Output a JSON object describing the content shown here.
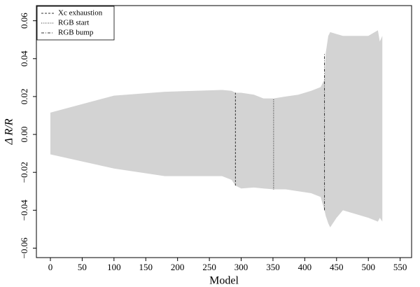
{
  "chart_data": {
    "type": "band",
    "xlabel": "Model",
    "ylabel": "Δ R/R",
    "xlim": [
      -22,
      568
    ],
    "ylim": [
      -0.065,
      0.068
    ],
    "xticks": [
      0,
      50,
      100,
      150,
      200,
      250,
      300,
      350,
      400,
      450,
      500,
      550
    ],
    "yticks": [
      {
        "value": -0.06,
        "label": "−0.06"
      },
      {
        "value": -0.04,
        "label": "−0.04"
      },
      {
        "value": -0.02,
        "label": "−0.02"
      },
      {
        "value": 0,
        "label": "0.00"
      },
      0.02,
      0.04,
      0.06
    ],
    "band": {
      "color": "#d3d3d3",
      "x": [
        0,
        100,
        180,
        270,
        285,
        291,
        300,
        320,
        335,
        351,
        370,
        390,
        410,
        425,
        431,
        433,
        437,
        440,
        450,
        460,
        480,
        500,
        515,
        518,
        522
      ],
      "upper": [
        0.0115,
        0.0205,
        0.0225,
        0.0235,
        0.023,
        0.022,
        0.022,
        0.021,
        0.019,
        0.019,
        0.02,
        0.021,
        0.023,
        0.025,
        0.029,
        0.043,
        0.052,
        0.054,
        0.053,
        0.052,
        0.052,
        0.052,
        0.055,
        0.049,
        0.052
      ],
      "lower": [
        -0.0105,
        -0.018,
        -0.022,
        -0.022,
        -0.024,
        -0.027,
        -0.0285,
        -0.028,
        -0.0285,
        -0.029,
        -0.029,
        -0.03,
        -0.031,
        -0.033,
        -0.04,
        -0.043,
        -0.047,
        -0.049,
        -0.044,
        -0.04,
        -0.042,
        -0.044,
        -0.046,
        -0.044,
        -0.046
      ]
    },
    "events": [
      {
        "name": "Xc exhaustion",
        "style": "dashed",
        "x": 291,
        "y": [
          -0.027,
          0.022
        ]
      },
      {
        "name": "RGB start",
        "style": "dotted",
        "x": 351,
        "y": [
          -0.029,
          0.019
        ]
      },
      {
        "name": "RGB bump",
        "style": "dashdot",
        "x": 431,
        "y": [
          -0.04,
          0.043
        ]
      }
    ],
    "legend": "upper left"
  }
}
